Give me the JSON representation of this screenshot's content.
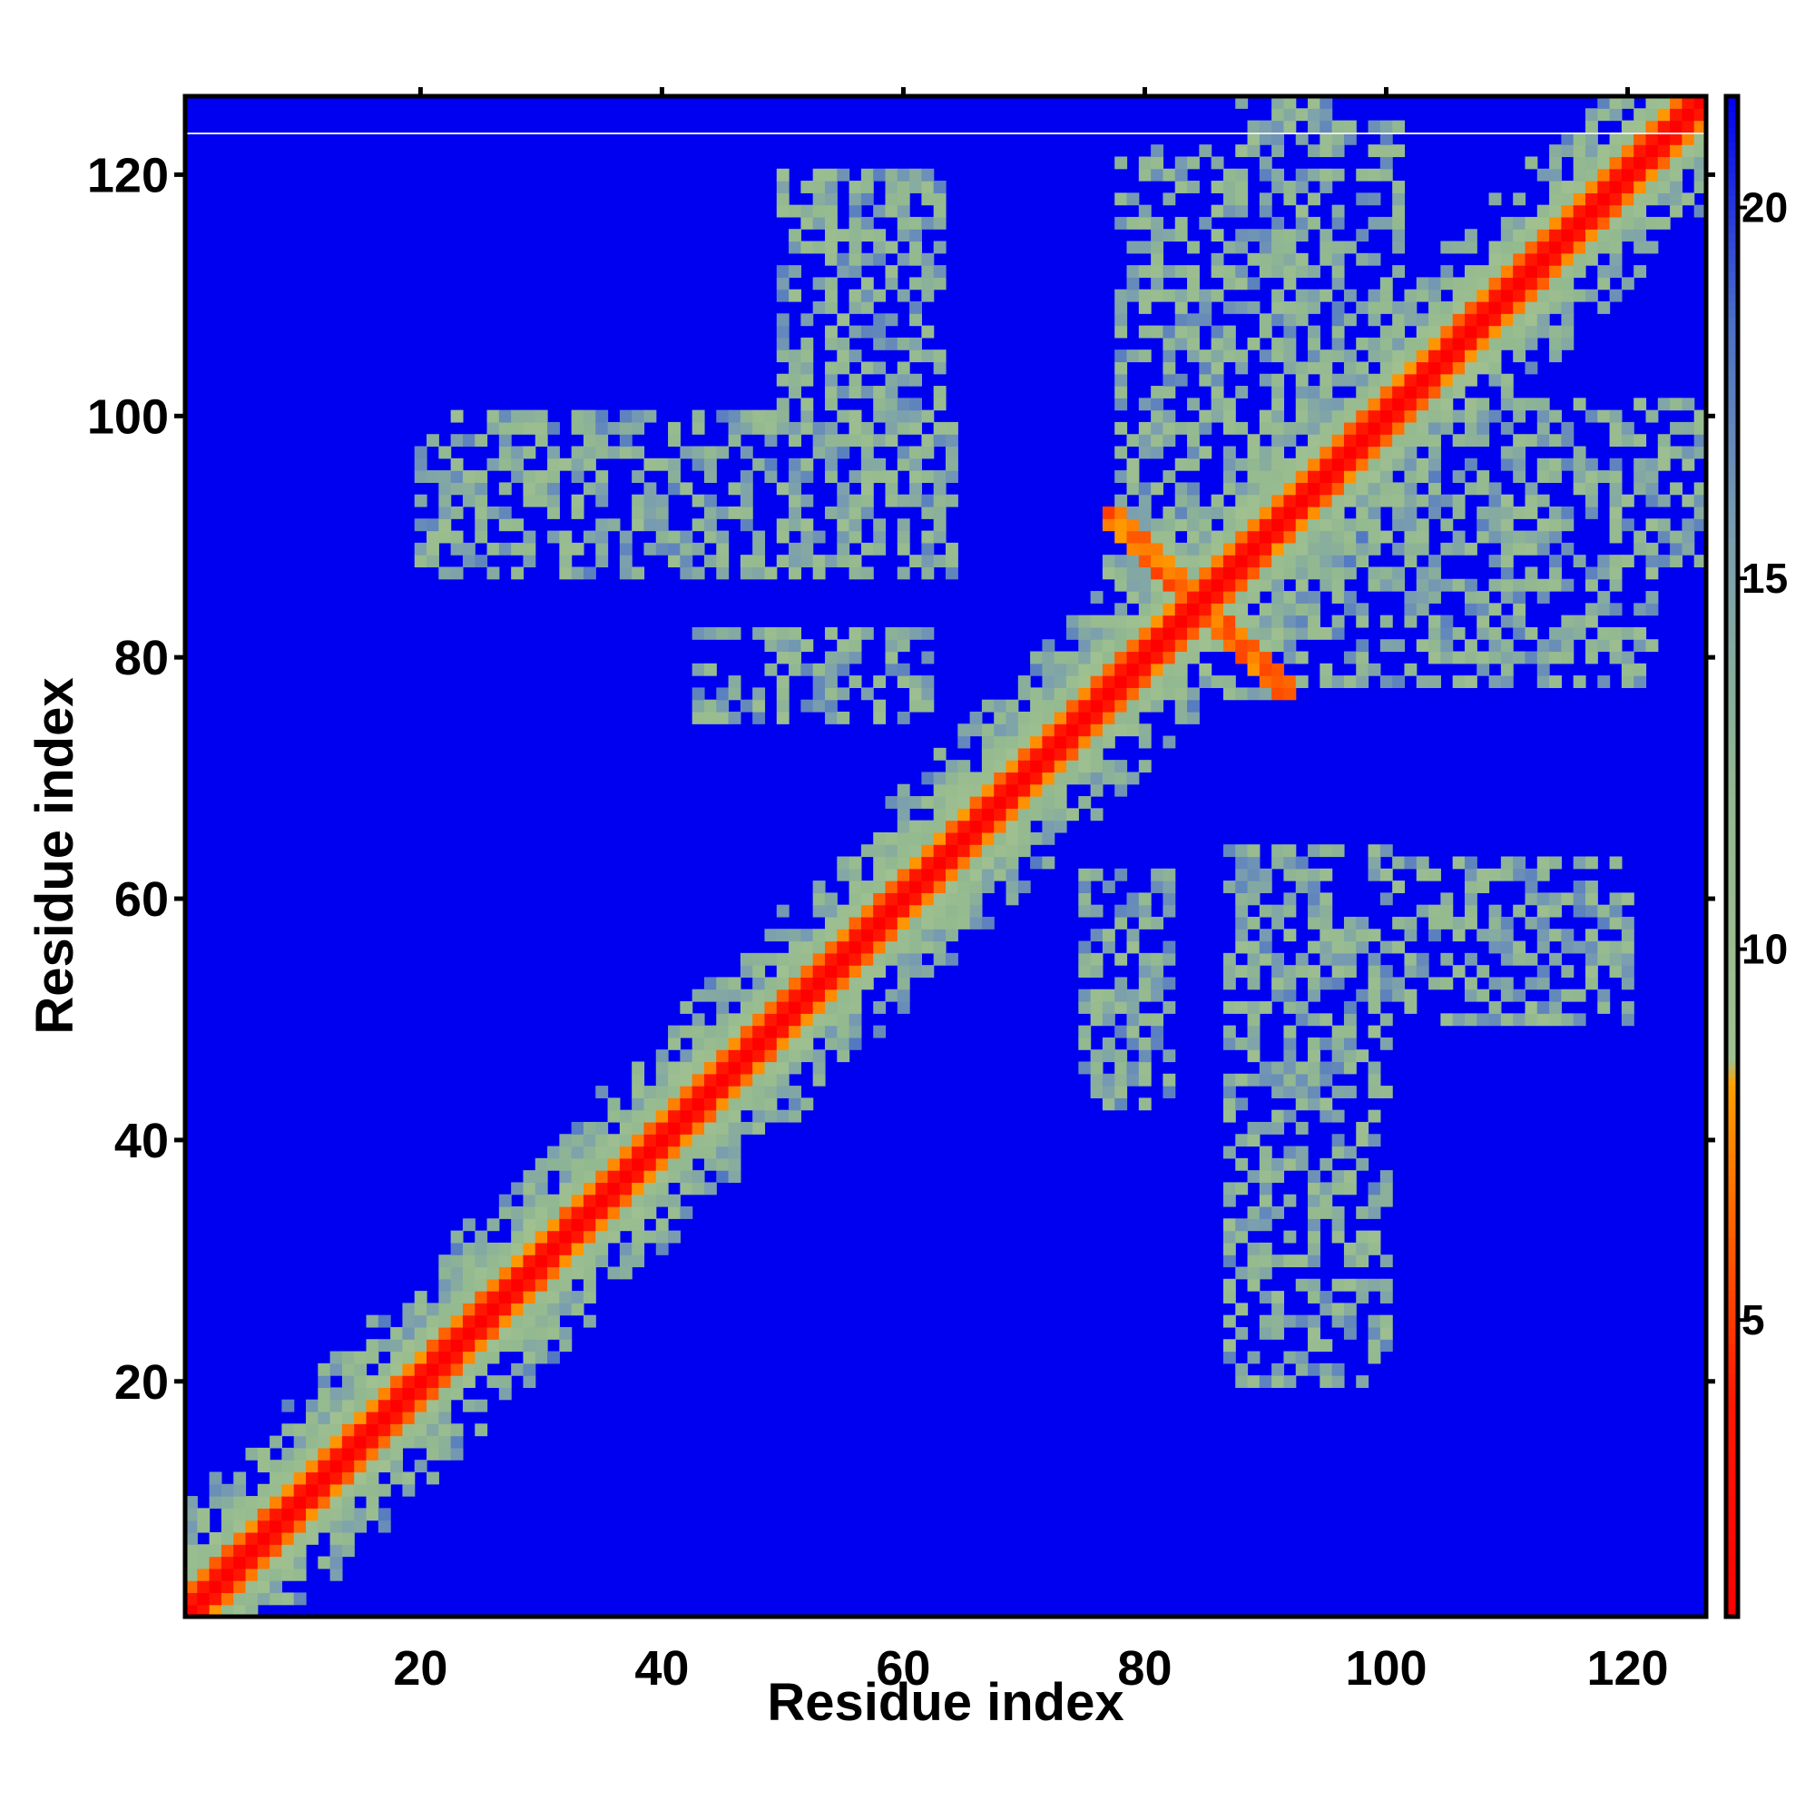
{
  "chart_data": {
    "type": "heatmap",
    "title": "",
    "xlabel": "Residue index",
    "ylabel": "Residue index",
    "n_residues": 126,
    "xlim": [
      1,
      126
    ],
    "ylim": [
      1,
      126
    ],
    "x_ticks": [
      20,
      40,
      60,
      80,
      100,
      120
    ],
    "y_ticks": [
      20,
      40,
      60,
      80,
      100,
      120
    ],
    "colorbar": {
      "range": [
        1,
        21.5
      ],
      "ticks": [
        5,
        10,
        15,
        20
      ],
      "position": "right",
      "stops": [
        {
          "value": 1,
          "color": "#ff0000"
        },
        {
          "value": 4,
          "color": "#ff1a00"
        },
        {
          "value": 6.5,
          "color": "#ff6a00"
        },
        {
          "value": 8.2,
          "color": "#ffa000"
        },
        {
          "value": 8.5,
          "color": "#a0c090"
        },
        {
          "value": 12,
          "color": "#93b990"
        },
        {
          "value": 15.5,
          "color": "#7b9fae"
        },
        {
          "value": 18.5,
          "color": "#4a70c8"
        },
        {
          "value": 21.5,
          "color": "#0000f0"
        }
      ]
    },
    "background_value": 21.5,
    "description_values": "matrix of pairwise distances; diagonal near 1, contact bands below 8, medium 9-18, background above 20",
    "contact_regions": [
      {
        "x": [
          1,
          126
        ],
        "y": [
          1,
          126
        ],
        "kind": "diagonal"
      },
      {
        "x": [
          50,
          56
        ],
        "y": [
          90,
          120
        ],
        "kind": "off-diagonal patch"
      },
      {
        "x": [
          22,
          64
        ],
        "y": [
          87,
          100
        ],
        "kind": "off-diagonal patch"
      },
      {
        "x": [
          43,
          62
        ],
        "y": [
          75,
          82
        ],
        "kind": "off-diagonal patch"
      },
      {
        "x": [
          77,
          92
        ],
        "y": [
          77,
          92
        ],
        "kind": "antiparallel cross"
      },
      {
        "x": [
          89,
          120
        ],
        "y": [
          50,
          63
        ],
        "kind": "off-diagonal patch"
      },
      {
        "x": [
          88,
          98
        ],
        "y": [
          20,
          45
        ],
        "kind": "off-diagonal patch"
      },
      {
        "x": [
          78,
          98
        ],
        "y": [
          90,
          122
        ],
        "kind": "off-diagonal patch"
      },
      {
        "x": [
          106,
          126
        ],
        "y": [
          88,
          101
        ],
        "kind": "off-diagonal patch"
      }
    ]
  }
}
